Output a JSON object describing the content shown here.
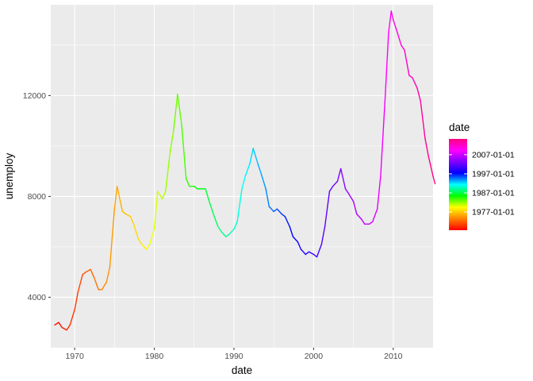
{
  "chart_data": {
    "type": "line",
    "title": "",
    "xlabel": "date",
    "ylabel": "unemploy",
    "x_ticks": [
      "1970",
      "1980",
      "1990",
      "2000",
      "2010"
    ],
    "x_tick_years": [
      1970,
      1980,
      1990,
      2000,
      2010
    ],
    "y_ticks": [
      4000,
      8000,
      12000
    ],
    "xlim": [
      1967.0,
      2015.0
    ],
    "ylim": [
      2000,
      15600
    ],
    "grid": true,
    "background": "#ebebeb",
    "legend": {
      "title": "date",
      "placement": "right",
      "labels": [
        "1977-01-01",
        "1987-01-01",
        "1997-01-01",
        "2007-01-01"
      ],
      "label_years": [
        1977.0,
        1987.0,
        1997.0,
        2007.0
      ],
      "range": [
        1967.5,
        2015.25
      ]
    },
    "color_scale": {
      "type": "rainbow",
      "stops": [
        "#ff0000",
        "#ff8000",
        "#ffff00",
        "#00ff00",
        "#00ffff",
        "#0000ff",
        "#8000ff",
        "#ff00ff",
        "#ff0080"
      ]
    },
    "series": [
      {
        "x": [
          "1967-07-01",
          "1968-01-01",
          "1968-06-01",
          "1969-01-01",
          "1969-06-01",
          "1970-01-01",
          "1970-06-01",
          "1971-01-01",
          "1971-06-01",
          "1972-01-01",
          "1972-06-01",
          "1973-01-01",
          "1973-06-01",
          "1974-01-01",
          "1974-06-01",
          "1975-01-01",
          "1975-05-01",
          "1976-01-01",
          "1976-06-01",
          "1977-01-01",
          "1977-06-01",
          "1978-01-01",
          "1978-06-01",
          "1979-01-01",
          "1979-06-01",
          "1980-01-01",
          "1980-06-01",
          "1981-01-01",
          "1981-06-01",
          "1982-01-01",
          "1982-06-01",
          "1982-12-01",
          "1983-06-01",
          "1984-01-01",
          "1984-06-01",
          "1985-01-01",
          "1985-06-01",
          "1986-01-01",
          "1986-06-01",
          "1987-01-01",
          "1987-06-01",
          "1988-01-01",
          "1988-06-01",
          "1989-01-01",
          "1989-06-01",
          "1990-01-01",
          "1990-06-01",
          "1991-01-01",
          "1991-06-01",
          "1992-01-01",
          "1992-06-01",
          "1993-01-01",
          "1993-06-01",
          "1994-01-01",
          "1994-06-01",
          "1995-01-01",
          "1995-06-01",
          "1996-01-01",
          "1996-06-01",
          "1997-01-01",
          "1997-06-01",
          "1998-01-01",
          "1998-06-01",
          "1999-01-01",
          "1999-06-01",
          "2000-01-01",
          "2000-06-01",
          "2001-01-01",
          "2001-06-01",
          "2002-01-01",
          "2002-06-01",
          "2003-01-01",
          "2003-06-01",
          "2004-01-01",
          "2004-06-01",
          "2005-01-01",
          "2005-06-01",
          "2006-01-01",
          "2006-06-01",
          "2007-01-01",
          "2007-06-01",
          "2008-01-01",
          "2008-06-01",
          "2009-01-01",
          "2009-06-01",
          "2009-10-01",
          "2010-01-01",
          "2010-06-01",
          "2011-01-01",
          "2011-06-01",
          "2012-01-01",
          "2012-06-01",
          "2013-01-01",
          "2013-06-01",
          "2014-01-01",
          "2014-06-01",
          "2015-01-01",
          "2015-04-01"
        ],
        "y": [
          2900,
          3000,
          2800,
          2700,
          2900,
          3500,
          4200,
          4900,
          5000,
          5100,
          4800,
          4300,
          4300,
          4600,
          5200,
          7500,
          8400,
          7400,
          7300,
          7200,
          6900,
          6300,
          6100,
          5900,
          6100,
          6700,
          8200,
          7900,
          8200,
          9800,
          10600,
          12050,
          10900,
          8700,
          8400,
          8400,
          8300,
          8300,
          8300,
          7700,
          7300,
          6800,
          6600,
          6400,
          6500,
          6700,
          7000,
          8300,
          8800,
          9300,
          9900,
          9300,
          8900,
          8300,
          7600,
          7400,
          7500,
          7300,
          7200,
          6800,
          6400,
          6200,
          5900,
          5700,
          5800,
          5700,
          5600,
          6100,
          6800,
          8200,
          8400,
          8600,
          9100,
          8300,
          8100,
          7800,
          7300,
          7100,
          6900,
          6900,
          7000,
          7500,
          8800,
          12000,
          14500,
          15350,
          15000,
          14600,
          14000,
          13800,
          12800,
          12700,
          12300,
          11800,
          10300,
          9600,
          8800,
          8500
        ]
      }
    ]
  }
}
